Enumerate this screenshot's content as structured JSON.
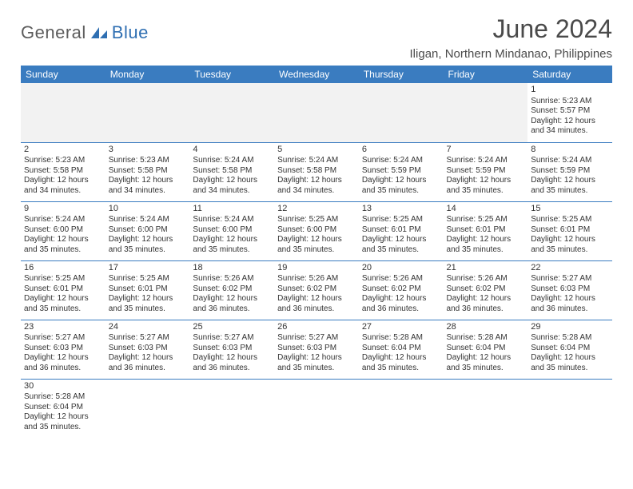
{
  "logo": {
    "part1": "General",
    "part2": "Blue"
  },
  "title": "June 2024",
  "location": "Iligan, Northern Mindanao, Philippines",
  "colors": {
    "header_bg": "#3a7cc0",
    "header_text": "#ffffff",
    "logo_gray": "#5c5c5c",
    "logo_blue": "#2f6fb2",
    "cell_border": "#3a7cc0",
    "empty_bg": "#f2f2f2",
    "text": "#333333"
  },
  "weekdays": [
    "Sunday",
    "Monday",
    "Tuesday",
    "Wednesday",
    "Thursday",
    "Friday",
    "Saturday"
  ],
  "weeks": [
    [
      null,
      null,
      null,
      null,
      null,
      null,
      {
        "n": "1",
        "sr": "5:23 AM",
        "ss": "5:57 PM",
        "dl": "12 hours and 34 minutes."
      }
    ],
    [
      {
        "n": "2",
        "sr": "5:23 AM",
        "ss": "5:58 PM",
        "dl": "12 hours and 34 minutes."
      },
      {
        "n": "3",
        "sr": "5:23 AM",
        "ss": "5:58 PM",
        "dl": "12 hours and 34 minutes."
      },
      {
        "n": "4",
        "sr": "5:24 AM",
        "ss": "5:58 PM",
        "dl": "12 hours and 34 minutes."
      },
      {
        "n": "5",
        "sr": "5:24 AM",
        "ss": "5:58 PM",
        "dl": "12 hours and 34 minutes."
      },
      {
        "n": "6",
        "sr": "5:24 AM",
        "ss": "5:59 PM",
        "dl": "12 hours and 35 minutes."
      },
      {
        "n": "7",
        "sr": "5:24 AM",
        "ss": "5:59 PM",
        "dl": "12 hours and 35 minutes."
      },
      {
        "n": "8",
        "sr": "5:24 AM",
        "ss": "5:59 PM",
        "dl": "12 hours and 35 minutes."
      }
    ],
    [
      {
        "n": "9",
        "sr": "5:24 AM",
        "ss": "6:00 PM",
        "dl": "12 hours and 35 minutes."
      },
      {
        "n": "10",
        "sr": "5:24 AM",
        "ss": "6:00 PM",
        "dl": "12 hours and 35 minutes."
      },
      {
        "n": "11",
        "sr": "5:24 AM",
        "ss": "6:00 PM",
        "dl": "12 hours and 35 minutes."
      },
      {
        "n": "12",
        "sr": "5:25 AM",
        "ss": "6:00 PM",
        "dl": "12 hours and 35 minutes."
      },
      {
        "n": "13",
        "sr": "5:25 AM",
        "ss": "6:01 PM",
        "dl": "12 hours and 35 minutes."
      },
      {
        "n": "14",
        "sr": "5:25 AM",
        "ss": "6:01 PM",
        "dl": "12 hours and 35 minutes."
      },
      {
        "n": "15",
        "sr": "5:25 AM",
        "ss": "6:01 PM",
        "dl": "12 hours and 35 minutes."
      }
    ],
    [
      {
        "n": "16",
        "sr": "5:25 AM",
        "ss": "6:01 PM",
        "dl": "12 hours and 35 minutes."
      },
      {
        "n": "17",
        "sr": "5:25 AM",
        "ss": "6:01 PM",
        "dl": "12 hours and 35 minutes."
      },
      {
        "n": "18",
        "sr": "5:26 AM",
        "ss": "6:02 PM",
        "dl": "12 hours and 36 minutes."
      },
      {
        "n": "19",
        "sr": "5:26 AM",
        "ss": "6:02 PM",
        "dl": "12 hours and 36 minutes."
      },
      {
        "n": "20",
        "sr": "5:26 AM",
        "ss": "6:02 PM",
        "dl": "12 hours and 36 minutes."
      },
      {
        "n": "21",
        "sr": "5:26 AM",
        "ss": "6:02 PM",
        "dl": "12 hours and 36 minutes."
      },
      {
        "n": "22",
        "sr": "5:27 AM",
        "ss": "6:03 PM",
        "dl": "12 hours and 36 minutes."
      }
    ],
    [
      {
        "n": "23",
        "sr": "5:27 AM",
        "ss": "6:03 PM",
        "dl": "12 hours and 36 minutes."
      },
      {
        "n": "24",
        "sr": "5:27 AM",
        "ss": "6:03 PM",
        "dl": "12 hours and 36 minutes."
      },
      {
        "n": "25",
        "sr": "5:27 AM",
        "ss": "6:03 PM",
        "dl": "12 hours and 36 minutes."
      },
      {
        "n": "26",
        "sr": "5:27 AM",
        "ss": "6:03 PM",
        "dl": "12 hours and 35 minutes."
      },
      {
        "n": "27",
        "sr": "5:28 AM",
        "ss": "6:04 PM",
        "dl": "12 hours and 35 minutes."
      },
      {
        "n": "28",
        "sr": "5:28 AM",
        "ss": "6:04 PM",
        "dl": "12 hours and 35 minutes."
      },
      {
        "n": "29",
        "sr": "5:28 AM",
        "ss": "6:04 PM",
        "dl": "12 hours and 35 minutes."
      }
    ],
    [
      {
        "n": "30",
        "sr": "5:28 AM",
        "ss": "6:04 PM",
        "dl": "12 hours and 35 minutes."
      },
      null,
      null,
      null,
      null,
      null,
      null
    ]
  ],
  "labels": {
    "sunrise": "Sunrise:",
    "sunset": "Sunset:",
    "daylight": "Daylight:"
  }
}
